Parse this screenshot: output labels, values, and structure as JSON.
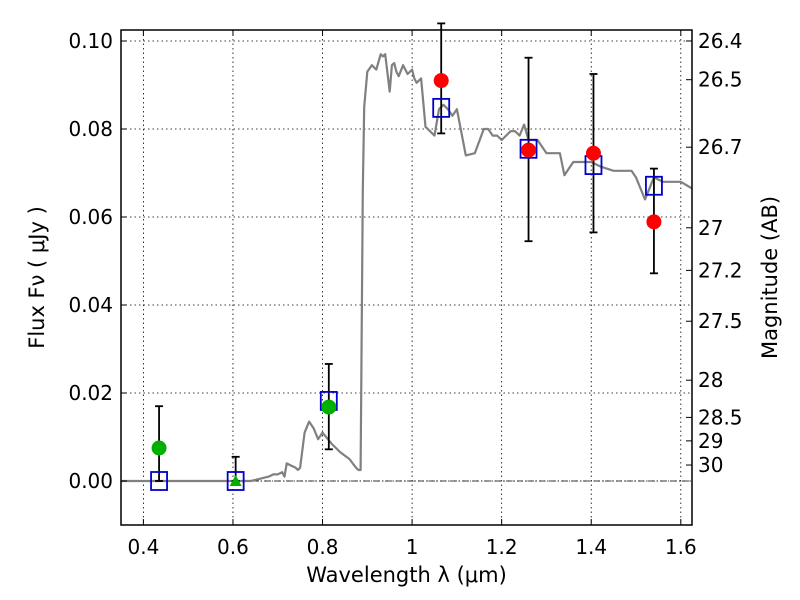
{
  "chart_data": {
    "type": "scatter",
    "xlabel": "Wavelength  λ (μm)",
    "ylabel": "Flux  Fν  ( μJy )",
    "y2label": "Magnitude (AB)",
    "xlim": [
      0.35,
      1.625
    ],
    "ylim": [
      -0.01,
      0.1025
    ],
    "grid": true,
    "x_ticks": [
      0.4,
      0.6,
      0.8,
      1.0,
      1.2,
      1.4,
      1.6
    ],
    "x_tick_labels": [
      "0.4",
      "0.6",
      "0.8",
      "1",
      "1.2",
      "1.4",
      "1.6"
    ],
    "y_ticks": [
      0.0,
      0.02,
      0.04,
      0.06,
      0.08,
      0.1
    ],
    "y_tick_labels": [
      "0.00",
      "0.02",
      "0.04",
      "0.06",
      "0.08",
      "0.10"
    ],
    "y2_ticks": [
      26.4,
      26.5,
      26.7,
      27,
      27.2,
      27.5,
      28,
      28.5,
      29,
      30
    ],
    "y2_tick_labels": [
      "26.4",
      "26.5",
      "26.7",
      "27",
      "27.2",
      "27.5",
      "28",
      "28.5",
      "29",
      "30"
    ],
    "zero_line": 0,
    "series": [
      {
        "name": "model spectrum",
        "kind": "line",
        "color": "#808080",
        "x": [
          0.35,
          0.64,
          0.66,
          0.68,
          0.69,
          0.7,
          0.71,
          0.715,
          0.72,
          0.73,
          0.74,
          0.745,
          0.75,
          0.76,
          0.77,
          0.78,
          0.79,
          0.8,
          0.82,
          0.84,
          0.86,
          0.875,
          0.88,
          0.885,
          0.89,
          0.893,
          0.9,
          0.91,
          0.92,
          0.93,
          0.935,
          0.94,
          0.95,
          0.955,
          0.96,
          0.965,
          0.97,
          0.98,
          0.99,
          1.0,
          1.005,
          1.01,
          1.02,
          1.03,
          1.04,
          1.05,
          1.06,
          1.07,
          1.08,
          1.09,
          1.1,
          1.12,
          1.14,
          1.16,
          1.17,
          1.18,
          1.19,
          1.2,
          1.21,
          1.22,
          1.23,
          1.24,
          1.25,
          1.26,
          1.28,
          1.3,
          1.32,
          1.33,
          1.34,
          1.36,
          1.38,
          1.4,
          1.42,
          1.45,
          1.47,
          1.49,
          1.5,
          1.52,
          1.54,
          1.56,
          1.58,
          1.6,
          1.625
        ],
        "y": [
          0.0,
          0.0,
          0.0005,
          0.001,
          0.0015,
          0.0015,
          0.002,
          0.001,
          0.004,
          0.0035,
          0.003,
          0.0025,
          0.003,
          0.011,
          0.0135,
          0.012,
          0.0095,
          0.011,
          0.0085,
          0.0065,
          0.005,
          0.003,
          0.0025,
          0.0025,
          0.066,
          0.085,
          0.093,
          0.0945,
          0.0935,
          0.097,
          0.0965,
          0.097,
          0.0885,
          0.0945,
          0.095,
          0.093,
          0.092,
          0.0945,
          0.0925,
          0.0935,
          0.0915,
          0.0905,
          0.0915,
          0.0805,
          0.0795,
          0.0785,
          0.0845,
          0.0855,
          0.0845,
          0.083,
          0.0845,
          0.074,
          0.0745,
          0.08,
          0.08,
          0.0785,
          0.0785,
          0.0775,
          0.0785,
          0.0795,
          0.0795,
          0.0785,
          0.081,
          0.0775,
          0.0775,
          0.0745,
          0.0745,
          0.0745,
          0.0695,
          0.0725,
          0.0725,
          0.0725,
          0.0715,
          0.0705,
          0.0705,
          0.0705,
          0.069,
          0.064,
          0.069,
          0.068,
          0.068,
          0.068,
          0.0665
        ]
      },
      {
        "name": "model photometry",
        "kind": "open-square",
        "color": "#0000cc",
        "x": [
          0.435,
          0.606,
          0.814,
          1.065,
          1.26,
          1.405,
          1.54
        ],
        "y": [
          0.0,
          0.0,
          0.0182,
          0.0848,
          0.0755,
          0.0718,
          0.0671
        ]
      },
      {
        "name": "observed fluxes",
        "kind": "circle",
        "color": "#ff0000",
        "x": [
          1.065,
          1.26,
          1.405,
          1.54
        ],
        "y": [
          0.091,
          0.0752,
          0.0745,
          0.0589
        ]
      },
      {
        "name": "observed fluxes (HST optical)",
        "kind": "circle",
        "color": "#00b000",
        "x": [
          0.435,
          0.814
        ],
        "y": [
          0.0075,
          0.0168
        ]
      },
      {
        "name": "upper/non detection",
        "kind": "triangle",
        "color": "#00b000",
        "x": [
          0.606
        ],
        "y": [
          0.0
        ]
      }
    ],
    "error_bars": [
      {
        "x": 0.435,
        "low": 0.0,
        "high": 0.017
      },
      {
        "x": 0.606,
        "low": 0.0,
        "high": 0.0055
      },
      {
        "x": 0.814,
        "low": 0.0072,
        "high": 0.0266
      },
      {
        "x": 1.065,
        "low": 0.079,
        "high": 0.104
      },
      {
        "x": 1.26,
        "low": 0.0545,
        "high": 0.0962
      },
      {
        "x": 1.405,
        "low": 0.0565,
        "high": 0.0925
      },
      {
        "x": 1.54,
        "low": 0.0472,
        "high": 0.071
      }
    ]
  }
}
